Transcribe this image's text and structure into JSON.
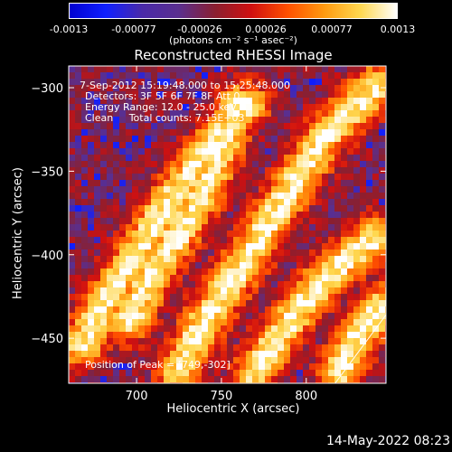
{
  "colorbar": {
    "ticks": [
      "-0.0013",
      "-0.00077",
      "-0.00026",
      "0.00026",
      "0.00077",
      "0.0013"
    ],
    "units_label": "(photons cm⁻² s⁻¹ asec⁻²)",
    "colors": [
      "#0000d0",
      "#1020ff",
      "#4a2aa8",
      "#5a2f8f",
      "#8a1f30",
      "#d01010",
      "#ff5000",
      "#ff9a10",
      "#ffd850",
      "#ffffff"
    ]
  },
  "chart_data": {
    "type": "heatmap",
    "title": "Reconstructed RHESSI Image",
    "xlabel": "Heliocentric X (arcsec)",
    "ylabel": "Heliocentric Y (arcsec)",
    "xlim": [
      660,
      847
    ],
    "ylim": [
      -477,
      -287
    ],
    "x_ticks": [
      700,
      750,
      800
    ],
    "y_ticks": [
      -300,
      -350,
      -400,
      -450
    ],
    "value_range": [
      -0.0013,
      0.0013
    ],
    "annotations": [
      "7-Sep-2012 15:19:48.000 to 15:25:48.000",
      "Detectors: 3F 5F 6F 7F 8F Att 0",
      "Energy Range: 12.0 - 25.0 keV",
      "Clean     Total counts: 7.15E+03"
    ],
    "peak_label": "Position of Peak = [749,-302]",
    "peak_position": [
      749,
      -302
    ],
    "limb_line": [
      [
        817,
        -477
      ],
      [
        847,
        -436
      ]
    ],
    "bright_ridges_xy": [
      [
        [
          668,
          -455
        ],
        [
          680,
          -430
        ],
        [
          700,
          -400
        ],
        [
          715,
          -375
        ],
        [
          740,
          -340
        ],
        [
          765,
          -310
        ]
      ],
      [
        [
          695,
          -440
        ],
        [
          710,
          -410
        ],
        [
          730,
          -380
        ],
        [
          745,
          -350
        ],
        [
          760,
          -310
        ]
      ],
      [
        [
          725,
          -470
        ],
        [
          740,
          -440
        ],
        [
          760,
          -410
        ],
        [
          785,
          -370
        ],
        [
          810,
          -330
        ],
        [
          840,
          -300
        ]
      ],
      [
        [
          770,
          -470
        ],
        [
          790,
          -440
        ],
        [
          815,
          -410
        ],
        [
          840,
          -390
        ]
      ],
      [
        [
          820,
          -470
        ],
        [
          830,
          -450
        ],
        [
          845,
          -430
        ]
      ]
    ]
  },
  "footer": {
    "timestamp": "14-May-2022 08:23"
  }
}
